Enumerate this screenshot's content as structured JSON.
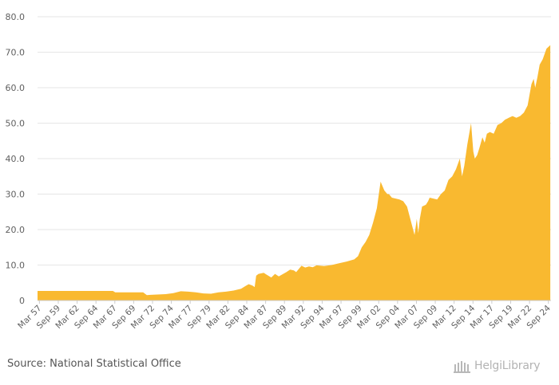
{
  "chart_data": {
    "type": "area",
    "title": "",
    "xlabel": "",
    "ylabel": "",
    "ylim": [
      0,
      80
    ],
    "yticks": [
      "0",
      "10.0",
      "20.0",
      "30.0",
      "40.0",
      "50.0",
      "60.0",
      "70.0",
      "80.0"
    ],
    "ytick_values": [
      0,
      10,
      20,
      30,
      40,
      50,
      60,
      70,
      80
    ],
    "xtick_labels": [
      "Mar 57",
      "Sep 59",
      "Mar 62",
      "Sep 64",
      "Mar 67",
      "Sep 69",
      "Mar 72",
      "Sep 74",
      "Mar 77",
      "Sep 79",
      "Mar 82",
      "Sep 84",
      "Mar 87",
      "Sep 89",
      "Mar 92",
      "Sep 94",
      "Mar 97",
      "Sep 99",
      "Mar 02",
      "Sep 04",
      "Mar 07",
      "Sep 09",
      "Mar 12",
      "Sep 14",
      "Mar 17",
      "Sep 19",
      "Mar 22",
      "Sep 24"
    ],
    "xtick_values": [
      1957.25,
      1959.75,
      1962.25,
      1964.75,
      1967.25,
      1969.75,
      1972.25,
      1974.75,
      1977.25,
      1979.75,
      1982.25,
      1984.75,
      1987.25,
      1989.75,
      1992.25,
      1994.75,
      1997.25,
      1999.75,
      2002.25,
      2004.75,
      2007.25,
      2009.75,
      2012.25,
      2014.75,
      2017.25,
      2019.75,
      2022.25,
      2024.75
    ],
    "xlim": [
      1957.0,
      2025.1
    ],
    "grid": true,
    "color": "#f9b930",
    "series": [
      {
        "name": "value",
        "x": [
          1957.0,
          1967.0,
          1967.3,
          1971.0,
          1971.5,
          1972.0,
          1974.0,
          1975.0,
          1976.0,
          1977.0,
          1978.0,
          1979.0,
          1980.0,
          1981.0,
          1982.0,
          1983.0,
          1984.0,
          1984.5,
          1985.0,
          1985.5,
          1985.8,
          1986.0,
          1986.3,
          1987.0,
          1987.3,
          1988.0,
          1988.5,
          1989.0,
          1990.0,
          1990.5,
          1991.0,
          1991.3,
          1992.0,
          1992.5,
          1993.0,
          1993.5,
          1994.0,
          1995.0,
          1996.0,
          1997.0,
          1998.0,
          1999.0,
          1999.5,
          2000.0,
          2000.5,
          2001.0,
          2001.5,
          2002.0,
          2002.5,
          2003.0,
          2003.4,
          2003.6,
          2004.0,
          2005.0,
          2005.5,
          2006.0,
          2007.0,
          2007.3,
          2007.5,
          2007.7,
          2008.0,
          2008.5,
          2008.8,
          2009.0,
          2010.0,
          2010.5,
          2011.0,
          2011.5,
          2012.0,
          2012.5,
          2013.0,
          2013.3,
          2013.6,
          2014.0,
          2014.5,
          2014.8,
          2015.0,
          2015.3,
          2015.6,
          2016.0,
          2016.3,
          2016.6,
          2017.0,
          2017.5,
          2018.0,
          2018.5,
          2019.0,
          2019.5,
          2020.0,
          2020.5,
          2021.0,
          2021.5,
          2022.0,
          2022.5,
          2022.8,
          2023.0,
          2023.3,
          2023.6,
          2024.0,
          2024.5,
          2025.0
        ],
        "values": [
          2.7,
          2.7,
          2.3,
          2.3,
          1.5,
          1.6,
          1.8,
          2.1,
          2.6,
          2.5,
          2.3,
          2.0,
          1.9,
          2.3,
          2.5,
          2.8,
          3.3,
          4.0,
          4.6,
          4.2,
          3.8,
          7.0,
          7.5,
          7.8,
          7.4,
          6.5,
          7.5,
          6.8,
          8.0,
          8.7,
          8.5,
          8.0,
          9.8,
          9.3,
          9.6,
          9.4,
          9.9,
          9.7,
          10.0,
          10.5,
          11.0,
          11.6,
          12.5,
          15.0,
          16.5,
          18.5,
          22.0,
          26.0,
          33.5,
          31.0,
          30.0,
          30.0,
          29.0,
          28.5,
          28.0,
          26.5,
          18.5,
          23.0,
          19.0,
          23.0,
          26.5,
          27.0,
          28.0,
          29.0,
          28.5,
          30.0,
          31.0,
          34.0,
          35.0,
          37.0,
          40.0,
          35.0,
          38.0,
          44.0,
          50.0,
          42.0,
          40.0,
          41.0,
          43.0,
          46.0,
          44.5,
          47.0,
          47.5,
          47.0,
          49.5,
          50.0,
          51.0,
          51.5,
          52.0,
          51.5,
          52.0,
          53.0,
          55.0,
          61.0,
          62.5,
          60.0,
          63.0,
          66.5,
          68.0,
          71.0,
          72.0
        ]
      }
    ]
  },
  "footer": {
    "source": "Source: National Statistical Office",
    "logo": "HelgiLibrary"
  }
}
